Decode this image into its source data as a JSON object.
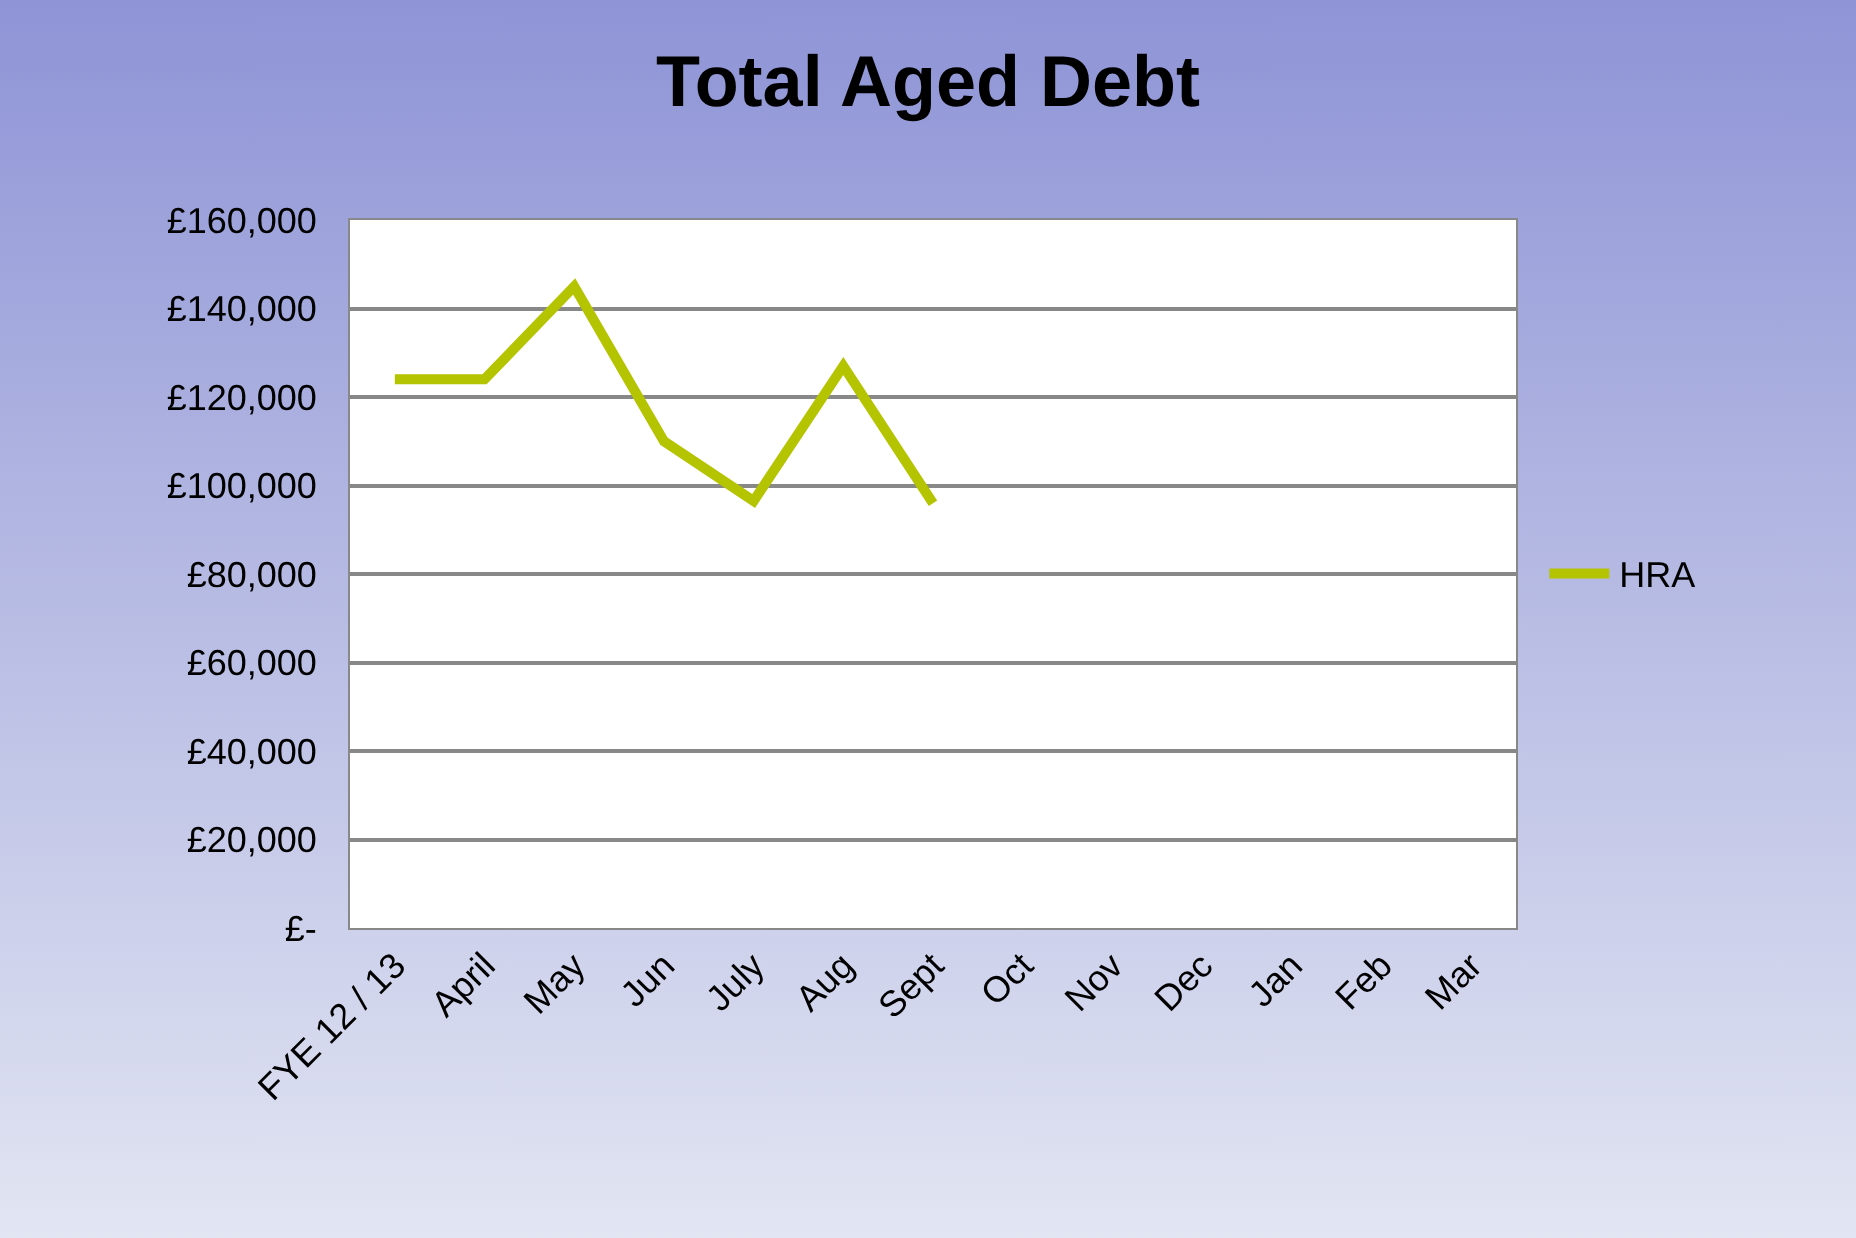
{
  "chart_data": {
    "type": "line",
    "title": "Total Aged Debt",
    "categories": [
      "FYE 12 / 13",
      "April",
      "May",
      "Jun",
      "July",
      "Aug",
      "Sept",
      "Oct",
      "Nov",
      "Dec",
      "Jan",
      "Feb",
      "Mar"
    ],
    "series": [
      {
        "name": "HRA",
        "color": "#b5c400",
        "values": [
          124000,
          124000,
          145000,
          110000,
          96500,
          127000,
          96000,
          null,
          null,
          null,
          null,
          null,
          null
        ]
      }
    ],
    "ylim": [
      0,
      160000
    ],
    "yticks": [
      {
        "value": 0,
        "label": "£-"
      },
      {
        "value": 20000,
        "label": "£20,000"
      },
      {
        "value": 40000,
        "label": "£40,000"
      },
      {
        "value": 60000,
        "label": "£60,000"
      },
      {
        "value": 80000,
        "label": "£80,000"
      },
      {
        "value": 100000,
        "label": "£100,000"
      },
      {
        "value": 120000,
        "label": "£120,000"
      },
      {
        "value": 140000,
        "label": "£140,000"
      },
      {
        "value": 160000,
        "label": "£160,000"
      }
    ],
    "grid": "y",
    "legend": "right",
    "marker": "none",
    "line_style": "solid"
  }
}
